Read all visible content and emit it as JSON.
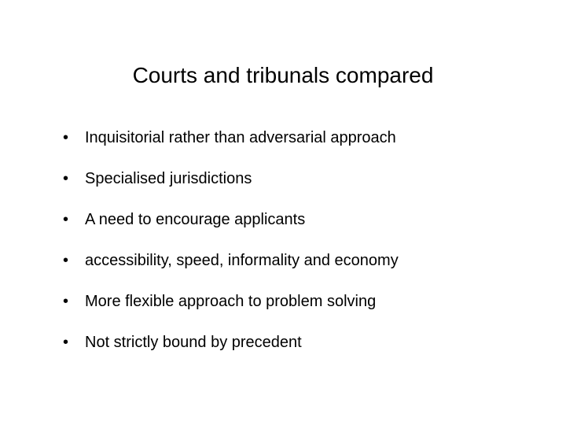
{
  "slide": {
    "title": "Courts and tribunals compared",
    "bullets": [
      "Inquisitorial rather than adversarial approach",
      "Specialised jurisdictions",
      "A need to encourage applicants",
      "accessibility, speed, informality and economy",
      "More flexible approach to problem solving",
      "Not strictly bound by precedent"
    ],
    "title_fontsize": 28,
    "bullet_fontsize": 20,
    "background_color": "#ffffff",
    "text_color": "#000000"
  }
}
